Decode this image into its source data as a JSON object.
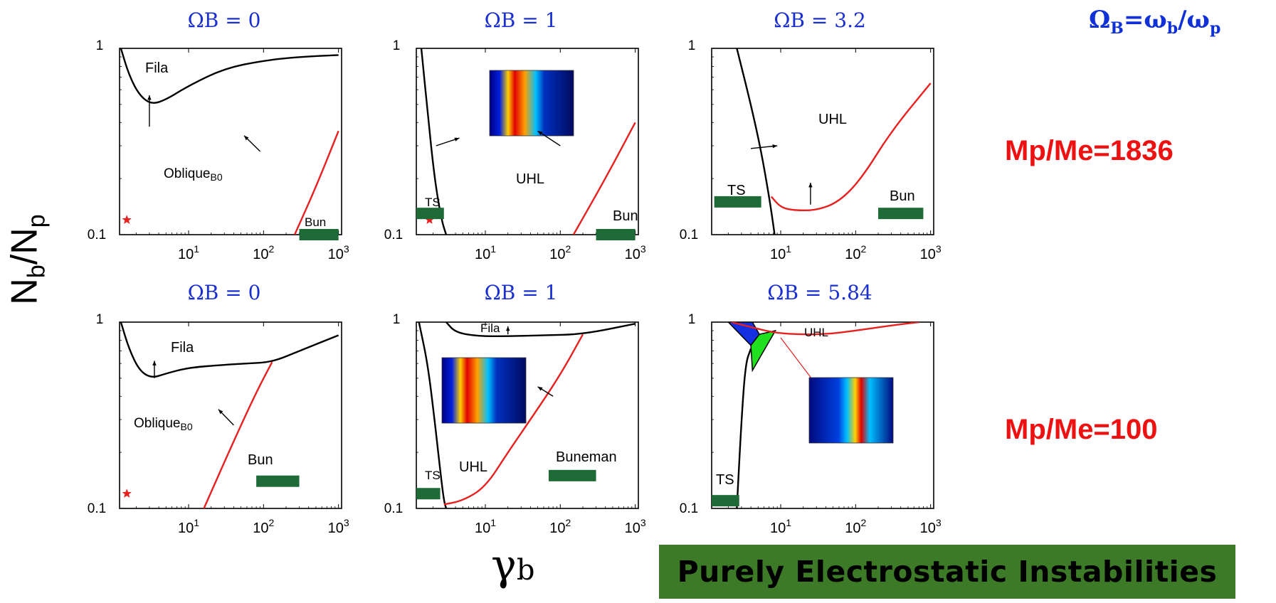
{
  "omega_definition": "ΩB=ωb/ωp",
  "mass_ratios": [
    "Mp/Me=1836",
    "Mp/Me=100"
  ],
  "shared_ylabel": "Nb/Np",
  "shared_xlabel": "γb",
  "banner": "Purely Electrostatic Instabilities",
  "colors": {
    "title": "#1a2fd0",
    "accent_red": "#ee1111",
    "bar_green": "#1e6b38",
    "banner_bg": "#3d7a28",
    "curve_black": "#000000",
    "curve_red": "#e82020"
  },
  "chart_data": [
    {
      "type": "line",
      "title": "ΩB = 0",
      "x_scale": "log",
      "y_scale": "log",
      "xlim": [
        1.2,
        1100
      ],
      "ylim": [
        0.1,
        1
      ],
      "x_ticks": [
        "10^1",
        "10^2",
        "10^3"
      ],
      "y_ticks": [
        "1",
        "0.1"
      ],
      "series": [
        {
          "color": "black",
          "x": [
            1.25,
            1.6,
            2.2,
            3.2,
            5,
            10,
            30,
            100,
            300,
            1000
          ],
          "y": [
            1.0,
            0.72,
            0.56,
            0.5,
            0.53,
            0.63,
            0.78,
            0.86,
            0.9,
            0.92
          ]
        },
        {
          "color": "red",
          "x": [
            260,
            500,
            1000
          ],
          "y": [
            0.1,
            0.18,
            0.36
          ]
        }
      ],
      "annotations": [
        "Fila",
        "Oblique",
        "B0",
        "Bun"
      ],
      "bars": [
        {
          "label": "Bun",
          "xrange": [
            300,
            1000
          ],
          "y": 0.1
        }
      ],
      "markers": [
        {
          "shape": "star",
          "x": 1.5,
          "y": 0.12
        }
      ],
      "arrows": [
        {
          "from": [
            3,
            0.38
          ],
          "to": [
            3,
            0.56
          ]
        },
        {
          "from": [
            90,
            0.28
          ],
          "to": [
            55,
            0.34
          ]
        }
      ]
    },
    {
      "type": "line",
      "title": "ΩB = 1",
      "x_scale": "log",
      "y_scale": "log",
      "xlim": [
        1.2,
        1100
      ],
      "ylim": [
        0.1,
        1
      ],
      "x_ticks": [
        "10^1",
        "10^2",
        "10^3"
      ],
      "y_ticks": [
        "1",
        "0.1"
      ],
      "series": [
        {
          "color": "black",
          "x": [
            1.4,
            1.7,
            2.1,
            2.6,
            3.0
          ],
          "y": [
            1.0,
            0.45,
            0.2,
            0.12,
            0.1
          ]
        },
        {
          "color": "red",
          "x": [
            150,
            400,
            1000
          ],
          "y": [
            0.1,
            0.2,
            0.4
          ]
        }
      ],
      "annotations": [
        "UHL",
        "TS",
        "Bun"
      ],
      "bars": [
        {
          "label": "TS",
          "xrange": [
            1.2,
            2.8
          ],
          "y": 0.13
        },
        {
          "label": "Bun",
          "xrange": [
            300,
            1000
          ],
          "y": 0.1
        }
      ],
      "markers": [
        {
          "shape": "star",
          "x": 1.8,
          "y": 0.12
        }
      ],
      "arrows": [
        {
          "from": [
            2.2,
            0.3
          ],
          "to": [
            4.5,
            0.33
          ]
        },
        {
          "from": [
            100,
            0.3
          ],
          "to": [
            50,
            0.36
          ]
        }
      ],
      "inset": true
    },
    {
      "type": "line",
      "title": "ΩB = 3.2",
      "x_scale": "log",
      "y_scale": "log",
      "xlim": [
        1.2,
        1100
      ],
      "ylim": [
        0.1,
        1
      ],
      "x_ticks": [
        "10^1",
        "10^2",
        "10^3"
      ],
      "y_ticks": [
        "1",
        "0.1"
      ],
      "series": [
        {
          "color": "black",
          "x": [
            2.6,
            4,
            5.5,
            7,
            7.8,
            8.3
          ],
          "y": [
            1.0,
            0.5,
            0.28,
            0.16,
            0.12,
            0.1
          ]
        },
        {
          "color": "red",
          "x": [
            7.5,
            10,
            15,
            30,
            60,
            120,
            300,
            1000
          ],
          "y": [
            0.16,
            0.14,
            0.135,
            0.135,
            0.15,
            0.2,
            0.36,
            0.65
          ]
        }
      ],
      "annotations": [
        "UHL",
        "TS",
        "Bun"
      ],
      "bars": [
        {
          "label": "TS",
          "xrange": [
            1.3,
            5.5
          ],
          "y": 0.15
        },
        {
          "label": "Bun",
          "xrange": [
            200,
            800
          ],
          "y": 0.13
        }
      ],
      "arrows": [
        {
          "from": [
            4,
            0.29
          ],
          "to": [
            9,
            0.3
          ]
        },
        {
          "from": [
            25,
            0.145
          ],
          "to": [
            25,
            0.19
          ]
        }
      ]
    },
    {
      "type": "line",
      "title": "ΩB = 0",
      "x_scale": "log",
      "y_scale": "log",
      "xlim": [
        1.2,
        1100
      ],
      "ylim": [
        0.1,
        1
      ],
      "x_ticks": [
        "10^1",
        "10^2",
        "10^3"
      ],
      "y_ticks": [
        "1",
        "0.1"
      ],
      "series": [
        {
          "color": "black",
          "x": [
            1.25,
            1.6,
            2.2,
            3.2,
            5,
            10,
            30,
            60,
            130,
            300,
            1000
          ],
          "y": [
            1.0,
            0.72,
            0.55,
            0.5,
            0.53,
            0.57,
            0.59,
            0.6,
            0.61,
            0.7,
            0.85
          ]
        },
        {
          "color": "red",
          "x": [
            16,
            40,
            80,
            130
          ],
          "y": [
            0.1,
            0.23,
            0.42,
            0.61
          ]
        }
      ],
      "annotations": [
        "Fila",
        "Oblique",
        "B0",
        "Bun"
      ],
      "bars": [
        {
          "label": "Bun",
          "xrange": [
            80,
            300
          ],
          "y": 0.14
        }
      ],
      "markers": [
        {
          "shape": "star",
          "x": 1.5,
          "y": 0.12
        }
      ],
      "arrows": [
        {
          "from": [
            3.5,
            0.5
          ],
          "to": [
            3.5,
            0.62
          ]
        },
        {
          "from": [
            40,
            0.28
          ],
          "to": [
            25,
            0.34
          ]
        }
      ]
    },
    {
      "type": "line",
      "title": "ΩB = 1",
      "x_scale": "log",
      "y_scale": "log",
      "xlim": [
        1.2,
        1100
      ],
      "ylim": [
        0.1,
        1
      ],
      "x_ticks": [
        "10^1",
        "10^2",
        "10^3"
      ],
      "y_ticks": [
        "1",
        "0.1"
      ],
      "series": [
        {
          "color": "black",
          "x": [
            1.3,
            1.7,
            2.1,
            2.5,
            2.8,
            3.0
          ],
          "y": [
            1.0,
            0.6,
            0.3,
            0.16,
            0.11,
            0.1
          ]
        },
        {
          "color": "black",
          "x": [
            3.0,
            4,
            8,
            20,
            60,
            200,
            1000
          ],
          "y": [
            1.0,
            0.88,
            0.84,
            0.84,
            0.85,
            0.86,
            0.98
          ]
        },
        {
          "color": "red",
          "x": [
            2.8,
            5,
            10,
            20,
            40,
            100,
            200
          ],
          "y": [
            0.105,
            0.11,
            0.13,
            0.2,
            0.3,
            0.52,
            0.86
          ]
        }
      ],
      "annotations": [
        "Fila",
        "UHL",
        "TS",
        "Buneman"
      ],
      "bars": [
        {
          "label": "TS",
          "xrange": [
            1.2,
            2.5
          ],
          "y": 0.12
        },
        {
          "label": "Buneman",
          "xrange": [
            70,
            300
          ],
          "y": 0.15
        }
      ],
      "markers": [
        {
          "shape": "star",
          "x": 1.8,
          "y": 0.12
        }
      ],
      "arrows": [
        {
          "from": [
            20,
            0.86
          ],
          "to": [
            20,
            0.95
          ]
        },
        {
          "from": [
            80,
            0.4
          ],
          "to": [
            50,
            0.45
          ]
        }
      ],
      "inset": true
    },
    {
      "type": "line",
      "title": "ΩB = 5.84",
      "x_scale": "log",
      "y_scale": "log",
      "xlim": [
        1.2,
        1100
      ],
      "ylim": [
        0.1,
        1
      ],
      "x_ticks": [
        "10^1",
        "10^2",
        "10^3"
      ],
      "y_ticks": [
        "1",
        "0.1"
      ],
      "series": [
        {
          "color": "black",
          "x": [
            2.6,
            3.0,
            3.4,
            4.0
          ],
          "y": [
            0.1,
            0.3,
            0.6,
            0.72
          ]
        },
        {
          "color": "red",
          "x": [
            2.2,
            5,
            8,
            15,
            40,
            100,
            300,
            700
          ],
          "y": [
            1.0,
            0.92,
            0.88,
            0.86,
            0.86,
            0.9,
            0.96,
            1.0
          ]
        }
      ],
      "annotations": [
        "UHL",
        "TS"
      ],
      "bars": [
        {
          "label": "TS",
          "xrange": [
            1.2,
            2.8
          ],
          "y": 0.11
        }
      ],
      "filled_regions": [
        {
          "color": "blue",
          "polygon": [
            [
              2.0,
              1.0
            ],
            [
              4.2,
              1.0
            ],
            [
              5.2,
              0.86
            ],
            [
              4.0,
              0.75
            ]
          ]
        },
        {
          "color": "green",
          "polygon": [
            [
              4.0,
              0.75
            ],
            [
              5.2,
              0.86
            ],
            [
              8.5,
              0.9
            ],
            [
              4.2,
              0.55
            ]
          ]
        }
      ],
      "inset": true
    }
  ]
}
